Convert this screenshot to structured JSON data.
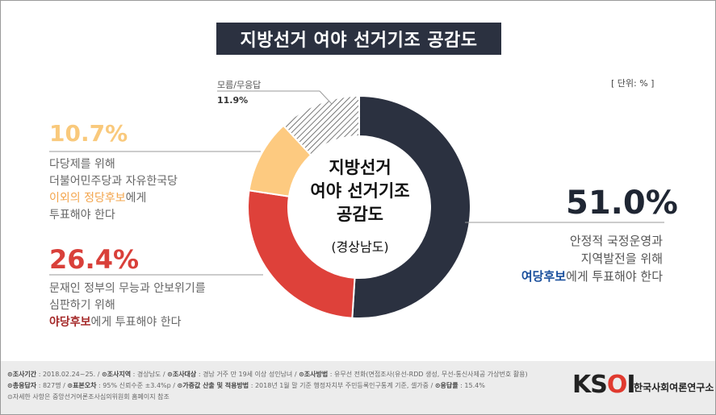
{
  "title": "지방선거 여야 선거기조 공감도",
  "unit": "[ 단위: % ]",
  "center": {
    "main_line1": "지방선거",
    "main_line2": "여야 선거기조",
    "main_line3": "공감도",
    "sub": "(경상남도)"
  },
  "segments": {
    "ruling": {
      "pct_text": "51.0%",
      "line1": "안정적 국정운영과",
      "line2": "지역발전을 위해",
      "line3_highlight": "여당후보",
      "line3_rest": "에게 투표해야 한다"
    },
    "opposition": {
      "pct_text": "26.4%",
      "line1": "문재인 정부의 무능과 안보위기를",
      "line2": "심판하기 위해",
      "line3_highlight": "야당후보",
      "line3_rest": "에게 투표해야 한다"
    },
    "third_party": {
      "pct_text": "10.7%",
      "line1": "다당제를 위해",
      "line2": "더불어민주당과 자유한국당",
      "line3_highlight": "이외의 정당후보",
      "line3_rest": "에게",
      "line4": "투표해야 한다"
    },
    "dont_know": {
      "label": "모름/무응답",
      "pct_text": "11.9%"
    }
  },
  "chart_data": {
    "type": "pie",
    "title": "지방선거 여야 선거기조 공감도",
    "subtitle": "(경상남도)",
    "unit": "%",
    "categories": [
      "여당후보에게 투표해야 한다",
      "야당후보에게 투표해야 한다",
      "이외의 정당후보에게 투표해야 한다",
      "모름/무응답"
    ],
    "values": [
      51.0,
      26.4,
      10.7,
      11.9
    ],
    "colors": [
      "#2b3140",
      "#de413a",
      "#fdca80",
      "hatch"
    ],
    "donut": true
  },
  "footer": {
    "line1": [
      {
        "k": "조사기간",
        "v": "2018.02.24~25."
      },
      {
        "k": "조사지역",
        "v": "경상남도"
      },
      {
        "k": "조사대상",
        "v": "경남 거주 만 19세 이상 성인남녀"
      },
      {
        "k": "조사방법",
        "v": "유무선 전화(면접조사(유선-RDD 생성, 무선-통신사제공 가상번호 활용)"
      }
    ],
    "line2": [
      {
        "k": "총응답자",
        "v": "827명"
      },
      {
        "k": "표본오차",
        "v": "95% 신뢰수준 ±3.4%p"
      },
      {
        "k": "가중값 산출 및 적용방법",
        "v": "2018년 1월 말 기준 행정자치부 주민등록인구통계 기준, 셀가중"
      },
      {
        "k": "응답률",
        "v": "15.4%"
      }
    ],
    "line3": "자세한 사항은 중앙선거여론조사심의위원회 홈페이지 참조"
  },
  "logo": {
    "text_k": "K",
    "text_s": "S",
    "text_o": "O",
    "text_i": "I",
    "subtitle": "한국사회여론연구소"
  }
}
